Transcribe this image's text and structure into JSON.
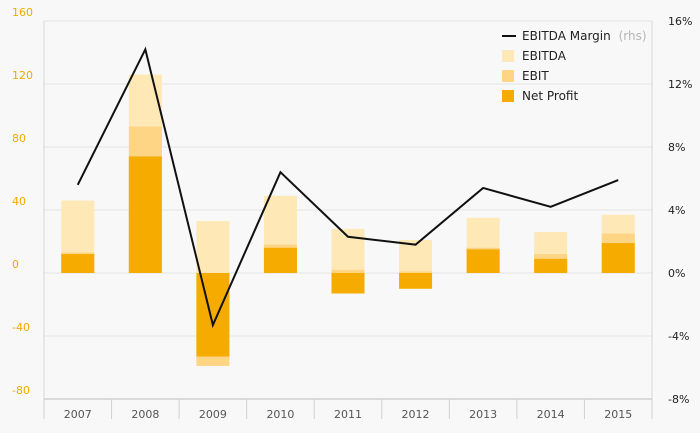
{
  "chart_data": {
    "type": "bar",
    "categories": [
      "2007",
      "2008",
      "2009",
      "2010",
      "2011",
      "2012",
      "2013",
      "2014",
      "2015"
    ],
    "series": [
      {
        "name": "EBITDA",
        "kind": "bar",
        "color": "#fde8b6",
        "values": [
          46,
          126,
          33,
          49,
          28,
          21,
          35,
          26,
          37
        ]
      },
      {
        "name": "EBIT",
        "kind": "bar",
        "color": "#fdd584",
        "values": [
          13,
          93,
          -59,
          18,
          2,
          1,
          16,
          12,
          25
        ]
      },
      {
        "name": "Net Profit",
        "kind": "bar",
        "color": "#f5ab00",
        "values": [
          12,
          74,
          -53,
          16,
          -13,
          -10,
          15,
          9,
          19
        ]
      },
      {
        "name": "EBITDA Margin",
        "name_suffix": "(rhs)",
        "kind": "line",
        "color": "#111111",
        "axis": "right",
        "values": [
          5.6,
          14.2,
          -3.3,
          6.4,
          2.3,
          1.8,
          5.4,
          4.2,
          5.9
        ]
      }
    ],
    "y_left": {
      "ylim": [
        -80,
        160
      ],
      "ticks": [
        "-80",
        "-40",
        "0",
        "40",
        "80",
        "120",
        "160"
      ]
    },
    "y_right": {
      "ylim": [
        -8,
        16
      ],
      "ticks": [
        "-8%",
        "-4%",
        "0%",
        "4%",
        "8%",
        "12%",
        "16%"
      ]
    },
    "grid": true,
    "legend_position": "top-right",
    "colors": {
      "left_axis": "#f2a900",
      "right_axis": "#222222",
      "grid": "#e3e3e3",
      "background": "#f8f8f8"
    }
  }
}
